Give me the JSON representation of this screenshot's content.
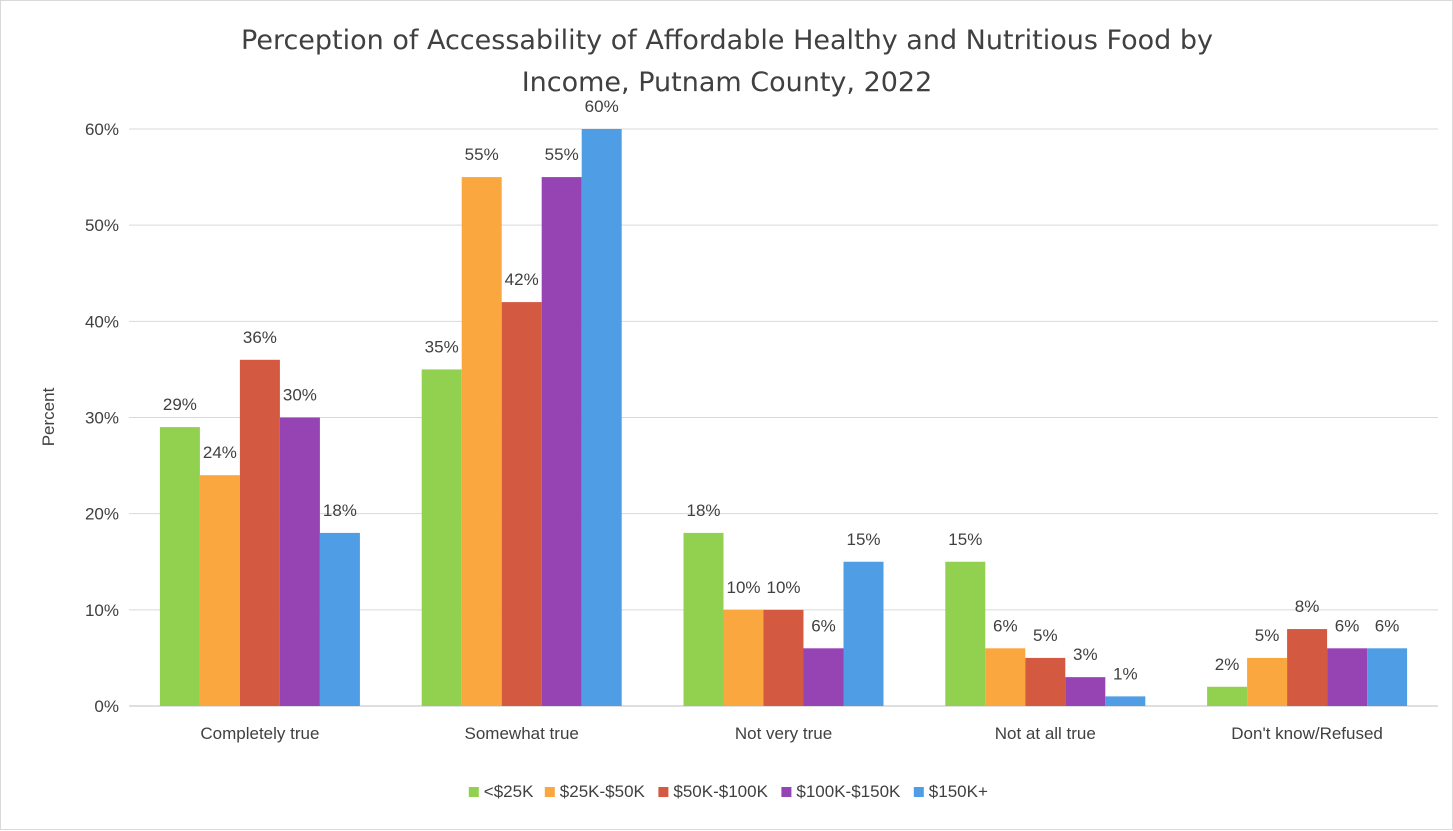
{
  "chart_data": {
    "type": "bar",
    "title_lines": [
      "Perception of Accessability of Affordable Healthy and Nutritious Food by",
      "Income, Putnam County, 2022"
    ],
    "xlabel": "",
    "ylabel": "Percent",
    "ylim": [
      0,
      60
    ],
    "yticks": [
      0,
      10,
      20,
      30,
      40,
      50,
      60
    ],
    "ytick_labels": [
      "0%",
      "10%",
      "20%",
      "30%",
      "40%",
      "50%",
      "60%"
    ],
    "grid": true,
    "legend_position": "bottom",
    "categories": [
      "Completely true",
      "Somewhat true",
      "Not very true",
      "Not at all true",
      "Don't know/Refused"
    ],
    "series": [
      {
        "name": "<$25K",
        "color": "#92d050",
        "values": [
          29,
          35,
          18,
          15,
          2
        ],
        "labels": [
          "29%",
          "35%",
          "18%",
          "15%",
          "2%"
        ]
      },
      {
        "name": "$25K-$50K",
        "color": "#f9a73e",
        "values": [
          24,
          55,
          10,
          6,
          5
        ],
        "labels": [
          "24%",
          "55%",
          "10%",
          "6%",
          "5%"
        ]
      },
      {
        "name": "$50K-$100K",
        "color": "#d35940",
        "values": [
          36,
          42,
          10,
          5,
          8
        ],
        "labels": [
          "36%",
          "42%",
          "10%",
          "5%",
          "8%"
        ]
      },
      {
        "name": "$100K-$150K",
        "color": "#9643b4",
        "values": [
          30,
          55,
          6,
          3,
          6
        ],
        "labels": [
          "30%",
          "55%",
          "6%",
          "3%",
          "6%"
        ]
      },
      {
        "name": "$150K+",
        "color": "#4f9de4",
        "values": [
          18,
          60,
          15,
          1,
          6
        ],
        "labels": [
          "18%",
          "60%",
          "15%",
          "1%",
          "6%"
        ]
      }
    ]
  }
}
